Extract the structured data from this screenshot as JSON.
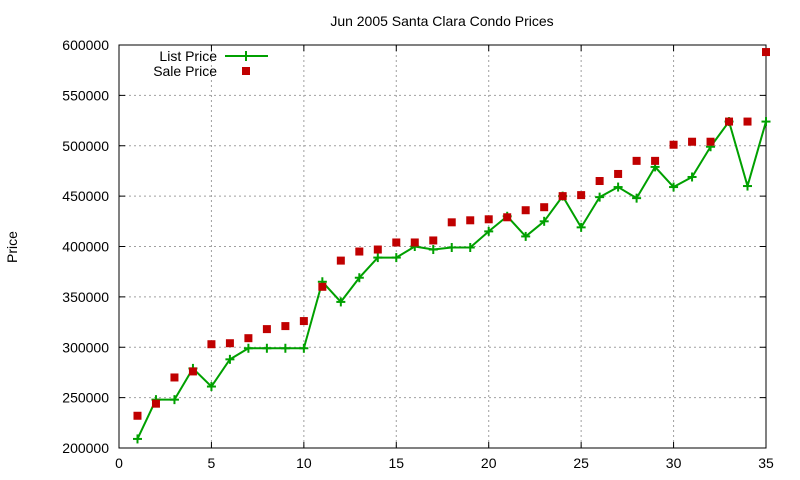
{
  "chart_data": {
    "type": "line",
    "title": "Jun 2005 Santa Clara Condo Prices",
    "xlabel": "",
    "ylabel": "Price",
    "xlim": [
      0,
      35
    ],
    "ylim": [
      200000,
      600000
    ],
    "xticks": [
      0,
      5,
      10,
      15,
      20,
      25,
      30,
      35
    ],
    "yticks": [
      200000,
      250000,
      300000,
      350000,
      400000,
      450000,
      500000,
      550000,
      600000
    ],
    "grid": true,
    "legend_position": "top-left",
    "series": [
      {
        "name": "List Price",
        "style": "lines+points",
        "marker": "plus",
        "color": "#00a000",
        "x": [
          1,
          2,
          3,
          4,
          5,
          6,
          7,
          8,
          9,
          10,
          11,
          12,
          13,
          14,
          15,
          16,
          17,
          18,
          19,
          20,
          21,
          22,
          23,
          24,
          25,
          26,
          27,
          28,
          29,
          30,
          31,
          32,
          33,
          34,
          35
        ],
        "y": [
          209000,
          248000,
          248000,
          279000,
          261000,
          288000,
          299000,
          299000,
          299000,
          299000,
          365000,
          345000,
          369000,
          389000,
          389000,
          400000,
          397000,
          399000,
          399000,
          415000,
          430000,
          410000,
          425000,
          450000,
          419000,
          449000,
          459000,
          448000,
          479000,
          459000,
          469000,
          499000,
          524000,
          460000,
          524000
        ]
      },
      {
        "name": "Sale Price",
        "style": "points",
        "marker": "square",
        "color": "#c00000",
        "x": [
          1,
          2,
          3,
          4,
          5,
          6,
          7,
          8,
          9,
          10,
          11,
          12,
          13,
          14,
          15,
          16,
          17,
          18,
          19,
          20,
          21,
          22,
          23,
          24,
          25,
          26,
          27,
          28,
          29,
          30,
          31,
          32,
          33,
          34,
          35
        ],
        "y": [
          232000,
          244000,
          270000,
          276000,
          303000,
          304000,
          309000,
          318000,
          321000,
          326000,
          360000,
          386000,
          395000,
          397000,
          404000,
          404000,
          406000,
          424000,
          426000,
          427000,
          429000,
          436000,
          439000,
          450000,
          451000,
          465000,
          472000,
          485000,
          485000,
          501000,
          504000,
          504000,
          524000,
          524000,
          593000
        ]
      }
    ]
  }
}
